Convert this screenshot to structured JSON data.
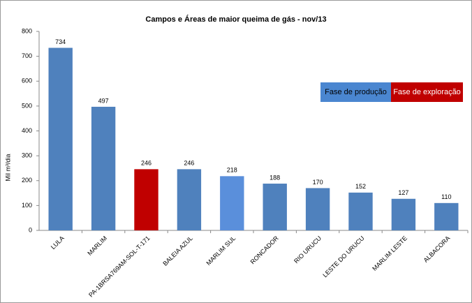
{
  "chart_data": {
    "type": "bar",
    "title": "Campos e Áreas de maior queima de gás - nov/13",
    "y_label": "Mil m³/dia",
    "categories": [
      "LULA",
      "MARLIM",
      "PA-1BRSA769AM-SOL-T-171",
      "BALEIA AZUL",
      "MARLIM SUL",
      "RONCADOR",
      "RIO URUCU",
      "LESTE DO URUCU",
      "MARLIM LESTE",
      "ALBACORA"
    ],
    "values": [
      734,
      497,
      246,
      246,
      218,
      188,
      170,
      152,
      127,
      110
    ],
    "colors": [
      "#4f81bd",
      "#4f81bd",
      "#c00000",
      "#4f81bd",
      "#5a8fdb",
      "#4f81bd",
      "#4f81bd",
      "#4f81bd",
      "#4f81bd",
      "#4f81bd"
    ],
    "ylim": [
      0,
      800
    ],
    "yticks": [
      0,
      100,
      200,
      300,
      400,
      500,
      600,
      700,
      800
    ],
    "legend": [
      {
        "name": "Fase de produção",
        "color": "#4a86d0"
      },
      {
        "name": "Fase de exploração",
        "color": "#c00000"
      }
    ]
  }
}
